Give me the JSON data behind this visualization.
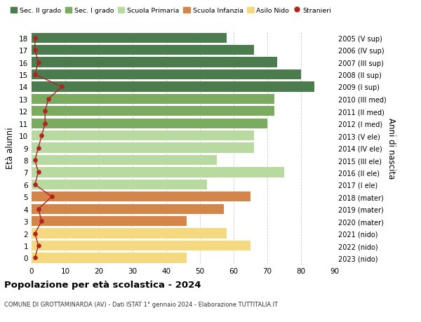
{
  "ages": [
    18,
    17,
    16,
    15,
    14,
    13,
    12,
    11,
    10,
    9,
    8,
    7,
    6,
    5,
    4,
    3,
    2,
    1,
    0
  ],
  "years": [
    "2005 (V sup)",
    "2006 (IV sup)",
    "2007 (III sup)",
    "2008 (II sup)",
    "2009 (I sup)",
    "2010 (III med)",
    "2011 (II med)",
    "2012 (I med)",
    "2013 (V ele)",
    "2014 (IV ele)",
    "2015 (III ele)",
    "2016 (II ele)",
    "2017 (I ele)",
    "2018 (mater)",
    "2019 (mater)",
    "2020 (mater)",
    "2021 (nido)",
    "2022 (nido)",
    "2023 (nido)"
  ],
  "values": [
    58,
    66,
    73,
    80,
    84,
    72,
    72,
    70,
    66,
    66,
    55,
    75,
    52,
    65,
    57,
    46,
    58,
    65,
    46
  ],
  "stranieri": [
    1,
    1,
    2,
    1,
    9,
    5,
    4,
    4,
    3,
    2,
    1,
    2,
    1,
    6,
    2,
    3,
    1,
    2,
    1
  ],
  "bar_colors": [
    "#4a7c4e",
    "#4a7c4e",
    "#4a7c4e",
    "#4a7c4e",
    "#4a7c4e",
    "#7aab5e",
    "#7aab5e",
    "#7aab5e",
    "#b8d9a0",
    "#b8d9a0",
    "#b8d9a0",
    "#b8d9a0",
    "#b8d9a0",
    "#d4854a",
    "#d4854a",
    "#d4854a",
    "#f5d980",
    "#f5d980",
    "#f5d980"
  ],
  "legend_labels": [
    "Sec. II grado",
    "Sec. I grado",
    "Scuola Primaria",
    "Scuola Infanzia",
    "Asilo Nido",
    "Stranieri"
  ],
  "legend_colors": [
    "#4a7c4e",
    "#7aab5e",
    "#b8d9a0",
    "#d4854a",
    "#f5d980",
    "#b22222"
  ],
  "stranieri_color": "#b22222",
  "title": "Popolazione per età scolastica - 2024",
  "subtitle": "COMUNE DI GROTTAMINARDA (AV) - Dati ISTAT 1° gennaio 2024 - Elaborazione TUTTITALIA.IT",
  "ylabel": "Età alunni",
  "ylabel2": "Anni di nascita",
  "xlim": [
    0,
    90
  ],
  "bg_color": "#ffffff",
  "grid_color": "#cccccc"
}
